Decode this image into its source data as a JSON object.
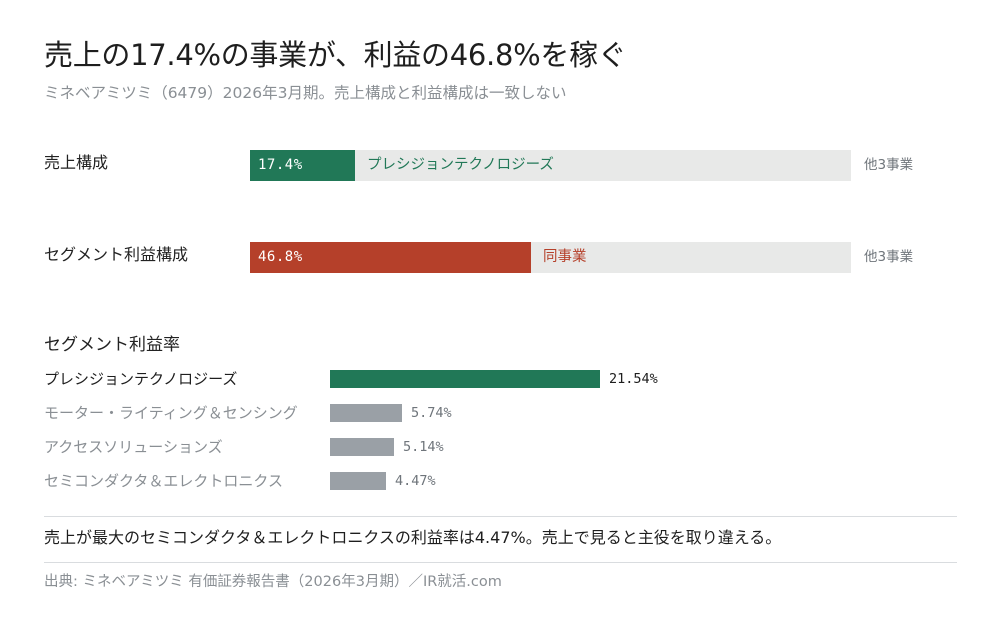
{
  "header": {
    "title": "売上の17.4%の事業が、利益の46.8%を稼ぐ",
    "subtitle": "ミネベアミツミ（6479）2026年3月期。売上構成と利益構成は一致しない"
  },
  "colors": {
    "green": "#217857",
    "red": "#b5402a",
    "gray_bar": "#9aa0a6",
    "track": "#e8e9e8"
  },
  "chart_data": [
    {
      "type": "bar",
      "orientation": "horizontal-stacked",
      "rows": [
        {
          "label": "売上構成",
          "highlight_pct": "17.4%",
          "highlight_value": 17.4,
          "highlight_name": "プレシジョンテクノロジーズ",
          "rest_label": "他3事業",
          "color": "#217857"
        },
        {
          "label": "セグメント利益構成",
          "highlight_pct": "46.8%",
          "highlight_value": 46.8,
          "highlight_name": "同事業",
          "rest_label": "他3事業",
          "color": "#b5402a"
        }
      ],
      "xlim": [
        0,
        100
      ]
    },
    {
      "type": "bar",
      "orientation": "horizontal",
      "title": "セグメント利益率",
      "categories": [
        "プレシジョンテクノロジーズ",
        "モーター・ライティング＆センシング",
        "アクセスソリューションズ",
        "セミコンダクタ＆エレクトロニクス"
      ],
      "values": [
        21.54,
        5.74,
        5.14,
        4.47
      ],
      "value_labels": [
        "21.54%",
        "5.74%",
        "5.14%",
        "4.47%"
      ],
      "highlight_index": 0,
      "xlim": [
        0,
        24
      ]
    }
  ],
  "footer": {
    "note": "売上が最大のセミコンダクタ＆エレクトロニクスの利益率は4.47%。売上で見ると主役を取り違える。",
    "source": "出典: ミネベアミツミ 有価証券報告書（2026年3月期）／IR就活.com"
  }
}
